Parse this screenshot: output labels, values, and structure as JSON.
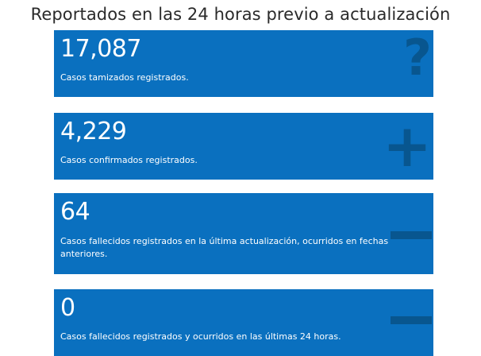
{
  "title": "Reportados en las 24 horas previo a actualización",
  "cards": [
    {
      "value": "17,087",
      "description": "Casos tamizados registrados.",
      "icon": "question-icon"
    },
    {
      "value": "4,229",
      "description": "Casos confirmados registrados.",
      "icon": "plus-icon"
    },
    {
      "value": "64",
      "description": "Casos fallecidos registrados en la última actualización, ocurridos en fechas anteriores.",
      "icon": "minus-icon"
    },
    {
      "value": "0",
      "description": "Casos fallecidos registrados y ocurridos en las últimas 24 horas.",
      "icon": "minus-icon"
    }
  ],
  "colors": {
    "card_background": "#0a70bf",
    "icon": "#08568f",
    "text": "#ffffff",
    "title": "#2a2a2a"
  }
}
